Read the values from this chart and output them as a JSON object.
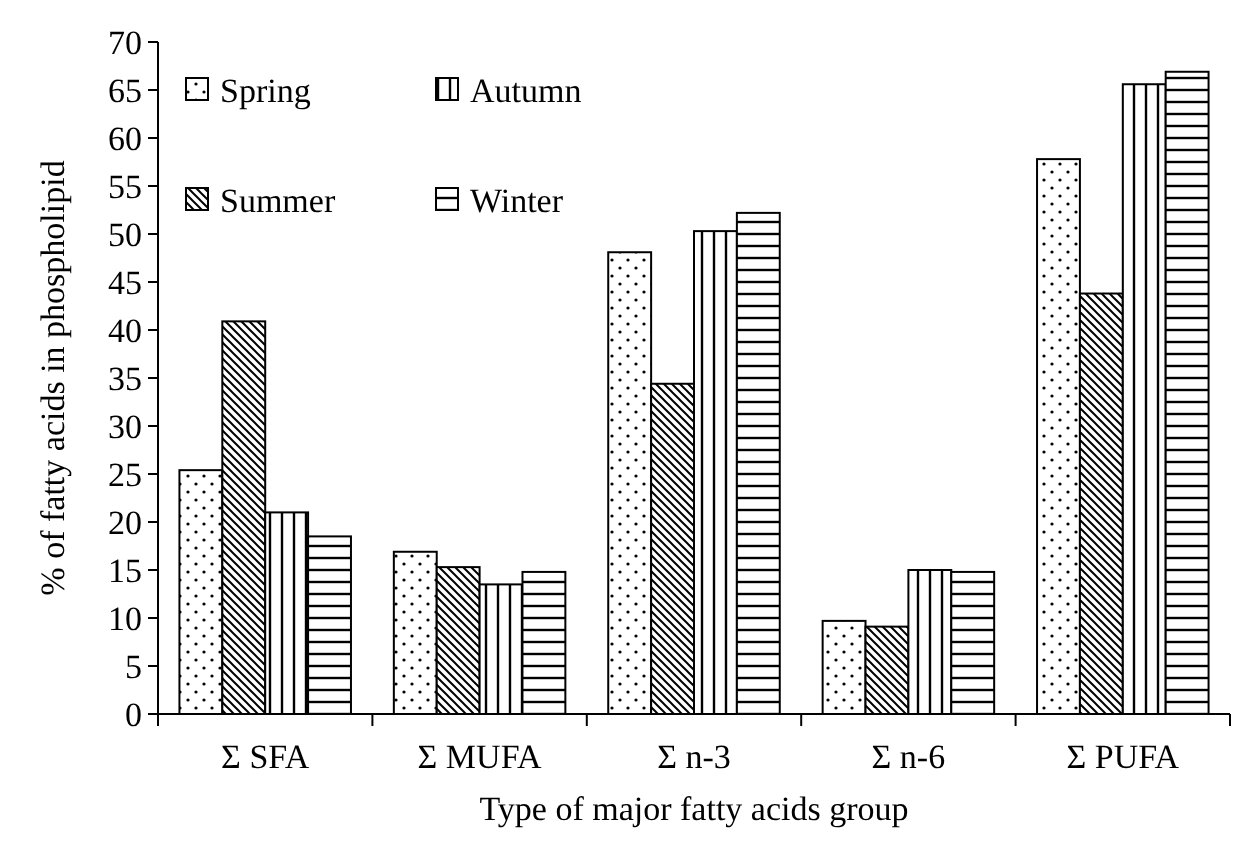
{
  "chart_data": {
    "type": "bar",
    "xlabel": "Type of major fatty acids group",
    "ylabel": "% of fatty acids in phospholipid",
    "categories": [
      "Σ SFA",
      "Σ MUFA",
      "Σ n-3",
      "Σ n-6",
      "Σ PUFA"
    ],
    "series": [
      {
        "name": "Spring",
        "color": "#000000",
        "values": [
          25.4,
          16.9,
          48.1,
          9.7,
          57.8
        ]
      },
      {
        "name": "Summer",
        "color": "#000000",
        "values": [
          40.9,
          15.3,
          34.4,
          9.1,
          43.8
        ]
      },
      {
        "name": "Autumn",
        "color": "#000000",
        "values": [
          21.0,
          13.5,
          50.3,
          15.0,
          65.6
        ]
      },
      {
        "name": "Winter",
        "color": "#000000",
        "values": [
          18.5,
          14.8,
          52.2,
          14.8,
          66.9
        ]
      }
    ],
    "ylim": [
      0,
      70
    ],
    "yticks": [
      0,
      5,
      10,
      15,
      20,
      25,
      30,
      35,
      40,
      45,
      50,
      55,
      60,
      65,
      70
    ],
    "grid": false,
    "legend": "top left"
  }
}
